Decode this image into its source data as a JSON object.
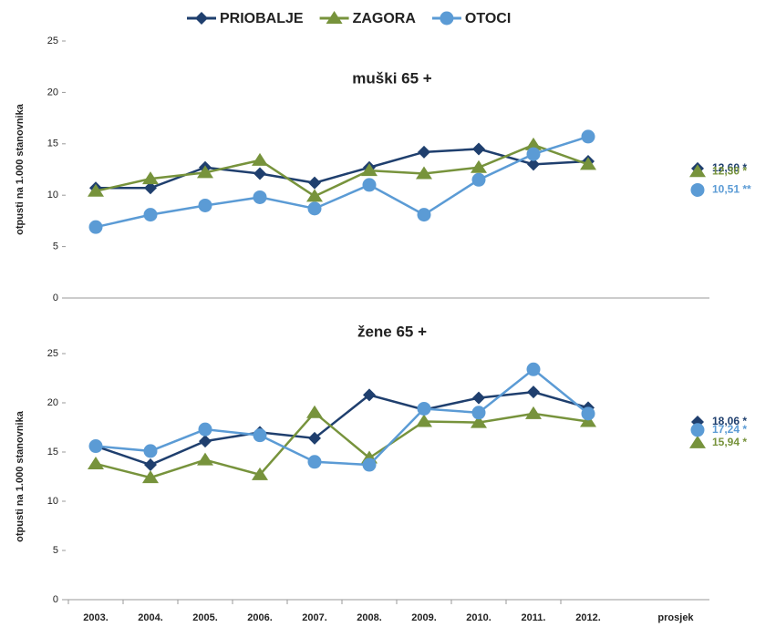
{
  "chart_data": [
    {
      "type": "line",
      "title": "muški 65 +",
      "ylabel": "otpusti na 1.000 stanovnika",
      "ylim": [
        0,
        25
      ],
      "yticks": [
        0,
        5,
        10,
        15,
        20,
        25
      ],
      "series": [
        {
          "name": "PRIOBALJE",
          "color": "#1f3f6e",
          "marker": "diamond",
          "values": [
            10.7,
            10.7,
            12.7,
            12.1,
            11.2,
            12.7,
            14.2,
            14.5,
            13.0,
            13.3
          ],
          "average": 12.6,
          "average_label": "12,60 *"
        },
        {
          "name": "ZAGORA",
          "color": "#77933c",
          "marker": "triangle",
          "values": [
            10.4,
            11.6,
            12.2,
            13.4,
            9.9,
            12.4,
            12.1,
            12.7,
            14.9,
            13.0
          ],
          "average": 12.3,
          "average_label": "12,30 *"
        },
        {
          "name": "OTOCI",
          "color": "#5b9bd5",
          "marker": "circle",
          "values": [
            6.9,
            8.1,
            9.0,
            9.8,
            8.7,
            11.0,
            8.1,
            11.5,
            14.0,
            15.7
          ],
          "average": 10.51,
          "average_label": "10,51 **"
        }
      ]
    },
    {
      "type": "line",
      "title": "žene 65 +",
      "ylabel": "otpusti na 1.000 stanovnika",
      "categories": [
        "2003.",
        "2004.",
        "2005.",
        "2006.",
        "2007.",
        "2008.",
        "2009.",
        "2010.",
        "2011.",
        "2012."
      ],
      "average_category": "prosjek",
      "ylim": [
        0,
        25
      ],
      "yticks": [
        0,
        5,
        10,
        15,
        20,
        25
      ],
      "series": [
        {
          "color": "#1f3f6e",
          "marker": "diamond",
          "values": [
            15.6,
            13.7,
            16.1,
            17.0,
            16.4,
            20.8,
            19.3,
            20.5,
            21.1,
            19.5
          ],
          "average": 18.06,
          "average_label": "18,06 *"
        },
        {
          "color": "#77933c",
          "marker": "triangle",
          "values": [
            13.8,
            12.4,
            14.2,
            12.7,
            19.0,
            14.4,
            18.1,
            18.0,
            18.9,
            18.1
          ],
          "average": 15.94,
          "average_label": "15,94 *"
        },
        {
          "color": "#5b9bd5",
          "marker": "circle",
          "values": [
            15.6,
            15.1,
            17.3,
            16.7,
            14.0,
            13.7,
            19.4,
            19.0,
            23.4,
            18.9
          ],
          "average": 17.24,
          "average_label": "17,24 *"
        }
      ]
    }
  ]
}
